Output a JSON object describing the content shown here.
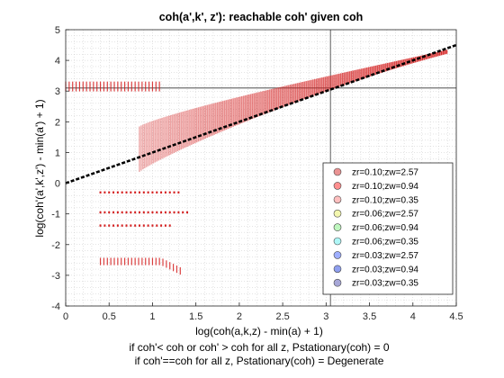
{
  "chart_data": {
    "type": "scatter",
    "title": "coh(a',k', z'): reachable coh' given coh",
    "xlabel": "log(coh(a,k,z) - min(a) + 1)",
    "ylabel": "log(coh'(a',k',z') - min(a') + 1)",
    "xlim": [
      0,
      4.5
    ],
    "ylim": [
      -4,
      5
    ],
    "xticks": [
      "0",
      "0.5",
      "1",
      "1.5",
      "2",
      "2.5",
      "3",
      "3.5",
      "4",
      "4.5"
    ],
    "yticks": [
      "-4",
      "-3",
      "-2",
      "-1",
      "0",
      "1",
      "2",
      "3",
      "4",
      "5"
    ],
    "grid": "minor-dotted",
    "legend_position": "bottom-right",
    "reference_lines": {
      "vertical_x": 3.05,
      "horizontal_y": 3.1,
      "diagonal": {
        "from": [
          0,
          0
        ],
        "to": [
          4.5,
          4.5
        ]
      }
    },
    "colors": [
      "#d62728",
      "#ff2020",
      "#ff8080",
      "#e8f060",
      "#80f080",
      "#60f0f0",
      "#4060ff",
      "#2040e0",
      "#5050b0"
    ],
    "series": [
      {
        "name": "zr=0.10;zw=2.57"
      },
      {
        "name": "zr=0.10;zw=0.94"
      },
      {
        "name": "zr=0.10;zw=0.35"
      },
      {
        "name": "zr=0.06;zw=2.57"
      },
      {
        "name": "zr=0.06;zw=0.94"
      },
      {
        "name": "zr=0.06;zw=0.35"
      },
      {
        "name": "zr=0.03;zw=2.57"
      },
      {
        "name": "zr=0.03;zw=0.94"
      },
      {
        "name": "zr=0.03;zw=0.35"
      }
    ],
    "clusters": [
      {
        "x_range": [
          0.0,
          1.08
        ],
        "y": 3.15,
        "type": "flat-band"
      },
      {
        "x_range": [
          0.4,
          1.3
        ],
        "y": -0.3,
        "type": "dots"
      },
      {
        "x_range": [
          0.4,
          1.4
        ],
        "y": -0.95,
        "type": "dots"
      },
      {
        "x_range": [
          0.4,
          1.22
        ],
        "y": -1.38,
        "type": "dots"
      },
      {
        "x_range": [
          0.4,
          1.35
        ],
        "y": -2.55,
        "type": "dots-declining"
      },
      {
        "x_range": [
          0.85,
          4.4
        ],
        "y_start": 1.1,
        "y_end": 4.3,
        "type": "main-band"
      }
    ]
  },
  "footer": {
    "line1": "if coh'< coh or coh' > coh for all z, Pstationary(coh) = 0",
    "line2": "if coh'==coh for all z, Pstationary(coh) = Degenerate"
  }
}
